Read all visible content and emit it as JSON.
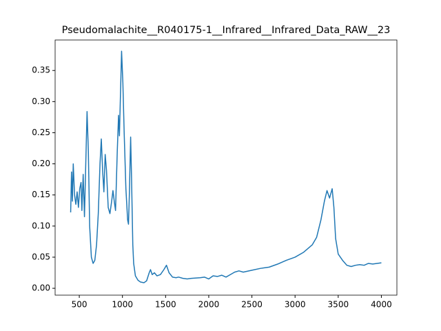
{
  "chart_data": {
    "type": "line",
    "title": "Pseudomalachite__R040175-1__Infrared__Infrared_Data_RAW__23",
    "x": [
      400,
      410,
      420,
      430,
      445,
      460,
      475,
      490,
      505,
      520,
      530,
      545,
      560,
      575,
      590,
      605,
      620,
      640,
      660,
      680,
      700,
      720,
      740,
      755,
      770,
      785,
      800,
      815,
      835,
      855,
      875,
      890,
      905,
      920,
      940,
      955,
      965,
      975,
      990,
      1005,
      1020,
      1040,
      1060,
      1070,
      1080,
      1095,
      1105,
      1120,
      1130,
      1150,
      1180,
      1210,
      1250,
      1280,
      1310,
      1325,
      1345,
      1370,
      1400,
      1440,
      1480,
      1510,
      1540,
      1580,
      1620,
      1650,
      1700,
      1750,
      1800,
      1900,
      1950,
      2000,
      2050,
      2100,
      2150,
      2200,
      2250,
      2300,
      2350,
      2400,
      2500,
      2600,
      2700,
      2800,
      2900,
      3000,
      3100,
      3200,
      3250,
      3300,
      3340,
      3370,
      3400,
      3430,
      3450,
      3470,
      3500,
      3550,
      3600,
      3650,
      3700,
      3750,
      3800,
      3850,
      3900,
      3950,
      4000
    ],
    "series": [
      {
        "color": "#1f77b4",
        "values": [
          0.122,
          0.187,
          0.14,
          0.2,
          0.15,
          0.135,
          0.155,
          0.13,
          0.16,
          0.17,
          0.125,
          0.183,
          0.115,
          0.2,
          0.284,
          0.22,
          0.1,
          0.05,
          0.04,
          0.045,
          0.07,
          0.12,
          0.2,
          0.24,
          0.19,
          0.155,
          0.215,
          0.19,
          0.13,
          0.12,
          0.14,
          0.157,
          0.14,
          0.125,
          0.22,
          0.278,
          0.245,
          0.3,
          0.381,
          0.33,
          0.25,
          0.16,
          0.11,
          0.103,
          0.15,
          0.243,
          0.18,
          0.07,
          0.04,
          0.02,
          0.013,
          0.01,
          0.009,
          0.012,
          0.025,
          0.03,
          0.022,
          0.025,
          0.02,
          0.022,
          0.03,
          0.037,
          0.025,
          0.018,
          0.017,
          0.018,
          0.016,
          0.015,
          0.016,
          0.017,
          0.018,
          0.015,
          0.02,
          0.019,
          0.021,
          0.018,
          0.022,
          0.026,
          0.028,
          0.026,
          0.029,
          0.032,
          0.034,
          0.039,
          0.045,
          0.05,
          0.058,
          0.07,
          0.082,
          0.11,
          0.14,
          0.157,
          0.145,
          0.16,
          0.13,
          0.08,
          0.055,
          0.045,
          0.037,
          0.035,
          0.037,
          0.038,
          0.037,
          0.04,
          0.039,
          0.04,
          0.041
        ]
      }
    ],
    "xlim": [
      220,
      4180
    ],
    "xticks": [
      500,
      1000,
      1500,
      2000,
      2500,
      3000,
      3500,
      4000
    ],
    "ylim": [
      -0.011,
      0.399
    ],
    "yticks": [
      {
        "value": 0,
        "label": "0.00"
      },
      {
        "value": 0.05,
        "label": "0.05"
      },
      {
        "value": 0.1,
        "label": "0.10"
      },
      {
        "value": 0.15,
        "label": "0.15"
      },
      {
        "value": 0.2,
        "label": "0.20"
      },
      {
        "value": 0.25,
        "label": "0.25"
      },
      {
        "value": 0.3,
        "label": "0.30"
      },
      {
        "value": 0.35,
        "label": "0.35"
      }
    ]
  }
}
